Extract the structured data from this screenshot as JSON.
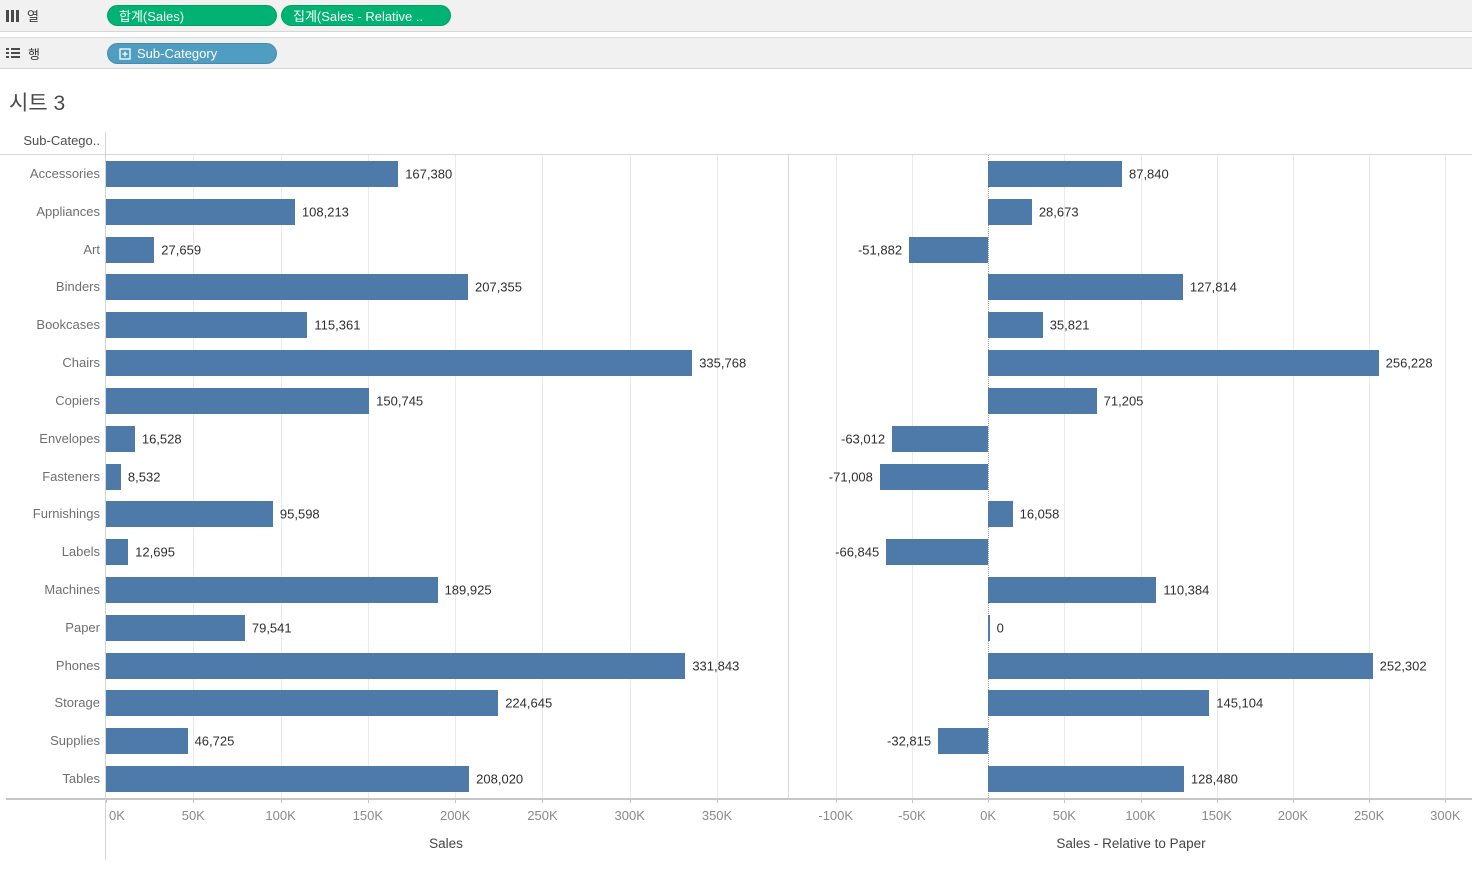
{
  "colors": {
    "bar": "#4d7aa8",
    "pill_measure_green": "#00b373",
    "pill_dimension_blue": "#4f9dc1"
  },
  "shelves": {
    "columns_shelf": {
      "label": "열",
      "pills": [
        {
          "label": "합계(Sales)"
        },
        {
          "label": "집계(Sales - Relative .."
        }
      ]
    },
    "rows_shelf": {
      "label": "행",
      "pills": [
        {
          "label": "Sub-Category",
          "icon": "expand-plus-icon"
        }
      ]
    }
  },
  "sheet_title": "시트 3",
  "row_field_header": "Sub-Catego..",
  "chart_data": [
    {
      "type": "bar",
      "orientation": "horizontal",
      "title": "",
      "categories": [
        "Accessories",
        "Appliances",
        "Art",
        "Binders",
        "Bookcases",
        "Chairs",
        "Copiers",
        "Envelopes",
        "Fasteners",
        "Furnishings",
        "Labels",
        "Machines",
        "Paper",
        "Phones",
        "Storage",
        "Supplies",
        "Tables"
      ],
      "values": [
        167380,
        108213,
        27659,
        207355,
        115361,
        335768,
        150745,
        16528,
        8532,
        95598,
        12695,
        189925,
        79541,
        331843,
        224645,
        46725,
        208020
      ],
      "value_labels": [
        "167,380",
        "108,213",
        "27,659",
        "207,355",
        "115,361",
        "335,768",
        "150,745",
        "16,528",
        "8,532",
        "95,598",
        "12,695",
        "189,925",
        "79,541",
        "331,843",
        "224,645",
        "46,725",
        "208,020"
      ],
      "xlabel": "Sales",
      "xlim": [
        0,
        389500
      ],
      "ticks": [
        {
          "v": 0,
          "label": "0K"
        },
        {
          "v": 50000,
          "label": "50K"
        },
        {
          "v": 100000,
          "label": "100K"
        },
        {
          "v": 150000,
          "label": "150K"
        },
        {
          "v": 200000,
          "label": "200K"
        },
        {
          "v": 250000,
          "label": "250K"
        },
        {
          "v": 300000,
          "label": "300K"
        },
        {
          "v": 350000,
          "label": "350K"
        }
      ],
      "grid": true,
      "zero_line": "none",
      "legend": "none"
    },
    {
      "type": "bar",
      "orientation": "horizontal",
      "title": "",
      "categories": [
        "Accessories",
        "Appliances",
        "Art",
        "Binders",
        "Bookcases",
        "Chairs",
        "Copiers",
        "Envelopes",
        "Fasteners",
        "Furnishings",
        "Labels",
        "Machines",
        "Paper",
        "Phones",
        "Storage",
        "Supplies",
        "Tables"
      ],
      "values": [
        87840,
        28673,
        -51882,
        127814,
        35821,
        256228,
        71205,
        -63012,
        -71008,
        16058,
        -66845,
        110384,
        0,
        252302,
        145104,
        -32815,
        128480
      ],
      "value_labels": [
        "87,840",
        "28,673",
        "-51,882",
        "127,814",
        "35,821",
        "256,228",
        "71,205",
        "-63,012",
        "-71,008",
        "16,058",
        "-66,845",
        "110,384",
        "0",
        "252,302",
        "145,104",
        "-32,815",
        "128,480"
      ],
      "xlabel": "Sales - Relative to Paper",
      "xlim": [
        -130000,
        317500
      ],
      "ticks": [
        {
          "v": -100000,
          "label": "-100K"
        },
        {
          "v": -50000,
          "label": "-50K"
        },
        {
          "v": 0,
          "label": "0K"
        },
        {
          "v": 50000,
          "label": "50K"
        },
        {
          "v": 100000,
          "label": "100K"
        },
        {
          "v": 150000,
          "label": "150K"
        },
        {
          "v": 200000,
          "label": "200K"
        },
        {
          "v": 250000,
          "label": "250K"
        },
        {
          "v": 300000,
          "label": "300K"
        }
      ],
      "grid": true,
      "zero_line": "dotted",
      "legend": "none"
    }
  ]
}
